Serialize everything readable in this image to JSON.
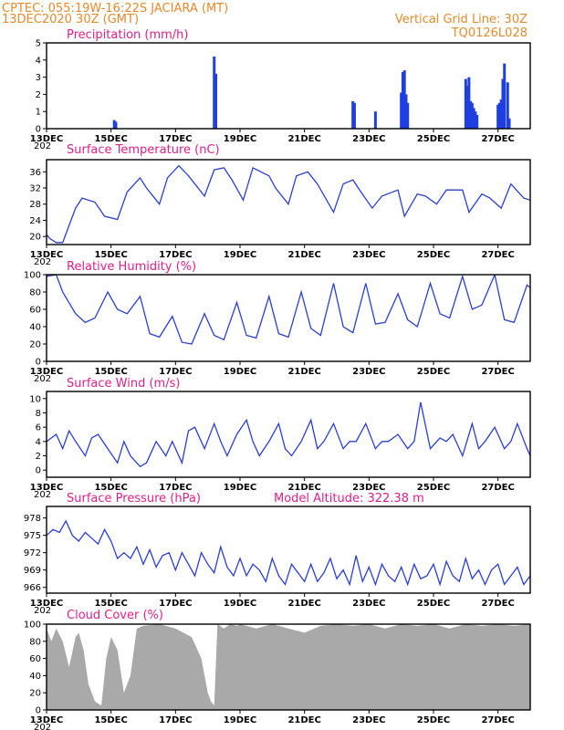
{
  "header": {
    "line1": "CPTEC:   055:19W-16:22S   JACIARA (MT)",
    "line2": "13DEC2020 30Z (GMT)",
    "right1": "Vertical Grid Line: 30Z",
    "right2": "TQ0126L028"
  },
  "x_axis": {
    "days_range": [
      0,
      15
    ],
    "tick_days": [
      0,
      2,
      4,
      6,
      8,
      10,
      12,
      14
    ],
    "tick_labels": [
      "13DEC",
      "15DEC",
      "17DEC",
      "19DEC",
      "21DEC",
      "23DEC",
      "25DEC",
      "27DEC"
    ],
    "first_label_suffix": "202"
  },
  "colors": {
    "line": "#2a3fd6",
    "bar": "#1f3fe0",
    "cloud": "#a9a9a9",
    "header": "#e8892c",
    "title": "#e0208a"
  },
  "chart_data": [
    {
      "type": "bar",
      "title": "Precipitation (mm/h)",
      "ylim": [
        0,
        5
      ],
      "yticks": [
        0,
        1,
        2,
        3,
        4,
        5
      ],
      "x": [
        2.1,
        2.15,
        5.2,
        5.25,
        9.5,
        9.55,
        10.2,
        11.0,
        11.05,
        11.1,
        11.15,
        11.2,
        13.0,
        13.05,
        13.1,
        13.15,
        13.2,
        13.25,
        13.3,
        13.35,
        14.0,
        14.05,
        14.1,
        14.15,
        14.2,
        14.3,
        14.35
      ],
      "values": [
        0.5,
        0.4,
        4.2,
        3.2,
        1.6,
        1.5,
        1.0,
        2.1,
        3.3,
        3.4,
        2.0,
        1.5,
        2.9,
        2.5,
        3.0,
        1.6,
        1.5,
        1.2,
        1.0,
        0.8,
        1.4,
        1.5,
        1.7,
        2.9,
        3.8,
        2.7,
        0.6
      ]
    },
    {
      "type": "line",
      "title": "Surface Temperature (nC)",
      "ylim": [
        18,
        39
      ],
      "yticks": [
        20,
        24,
        28,
        32,
        36
      ],
      "x": [
        0,
        0.1,
        0.3,
        0.5,
        0.9,
        1.1,
        1.5,
        1.8,
        2.2,
        2.5,
        2.9,
        3.1,
        3.5,
        3.75,
        4.1,
        4.4,
        4.9,
        5.2,
        5.5,
        5.75,
        6.1,
        6.4,
        6.9,
        7.1,
        7.5,
        7.75,
        8.1,
        8.4,
        8.9,
        9.2,
        9.5,
        9.75,
        10.1,
        10.4,
        10.9,
        11.1,
        11.5,
        11.75,
        12.1,
        12.4,
        12.9,
        13.1,
        13.5,
        13.75,
        14.1,
        14.4,
        14.8,
        15
      ],
      "values": [
        20.5,
        19.5,
        18.5,
        18.5,
        27,
        29.5,
        28.5,
        25,
        24.2,
        31,
        34.5,
        32,
        28,
        34.5,
        37.5,
        35,
        30,
        36.5,
        37,
        34,
        29,
        37,
        35,
        32,
        28,
        35,
        36,
        33,
        26,
        33,
        34,
        31,
        27,
        30,
        31.5,
        25,
        30.5,
        30,
        28,
        31.5,
        31.5,
        26,
        30.5,
        29.5,
        27,
        33,
        29.5,
        29
      ]
    },
    {
      "type": "line",
      "title": "Relative Humidity (%)",
      "ylim": [
        0,
        100
      ],
      "yticks": [
        0,
        20,
        40,
        60,
        80,
        100
      ],
      "x": [
        0,
        0.3,
        0.5,
        0.9,
        1.2,
        1.5,
        1.9,
        2.2,
        2.5,
        2.9,
        3.2,
        3.5,
        3.9,
        4.2,
        4.5,
        4.9,
        5.2,
        5.5,
        5.9,
        6.2,
        6.5,
        6.9,
        7.2,
        7.5,
        7.9,
        8.2,
        8.5,
        8.9,
        9.2,
        9.5,
        9.9,
        10.2,
        10.5,
        10.9,
        11.2,
        11.5,
        11.9,
        12.2,
        12.5,
        12.9,
        13.2,
        13.5,
        13.9,
        14.2,
        14.5,
        14.9,
        15
      ],
      "values": [
        98,
        100,
        80,
        55,
        45,
        50,
        80,
        60,
        55,
        75,
        32,
        28,
        52,
        22,
        20,
        55,
        30,
        25,
        68,
        30,
        27,
        75,
        32,
        28,
        80,
        38,
        30,
        90,
        40,
        33,
        90,
        43,
        45,
        78,
        48,
        40,
        90,
        55,
        50,
        98,
        60,
        65,
        100,
        48,
        45,
        88,
        85
      ]
    },
    {
      "type": "line",
      "title": "Surface Wind (m/s)",
      "ylim": [
        -1,
        11
      ],
      "yticks": [
        0,
        2,
        4,
        6,
        8,
        10
      ],
      "x": [
        0,
        0.3,
        0.5,
        0.7,
        0.9,
        1.2,
        1.4,
        1.6,
        1.9,
        2.2,
        2.4,
        2.6,
        2.9,
        3.1,
        3.4,
        3.7,
        3.9,
        4.2,
        4.4,
        4.6,
        4.9,
        5.2,
        5.4,
        5.6,
        5.9,
        6.2,
        6.4,
        6.6,
        6.9,
        7.2,
        7.4,
        7.6,
        7.9,
        8.2,
        8.4,
        8.6,
        8.9,
        9.2,
        9.4,
        9.6,
        9.9,
        10.2,
        10.4,
        10.6,
        10.9,
        11.2,
        11.4,
        11.6,
        11.9,
        12.2,
        12.4,
        12.6,
        12.9,
        13.2,
        13.4,
        13.6,
        13.9,
        14.2,
        14.4,
        14.6,
        14.9,
        15
      ],
      "values": [
        4,
        5,
        3,
        5.5,
        4,
        2,
        4.5,
        5,
        3,
        1,
        4,
        2,
        0.5,
        1,
        4,
        2,
        4,
        1,
        5.5,
        6,
        3,
        6.5,
        4,
        2,
        5,
        7,
        4,
        2,
        4,
        6.5,
        3,
        2,
        4,
        7,
        3,
        4,
        6.5,
        3,
        4,
        4,
        6.5,
        3,
        4,
        4,
        5,
        3,
        4,
        9.5,
        3,
        4.5,
        4,
        5,
        2,
        6.5,
        3,
        4,
        6,
        3,
        4,
        6.5,
        3,
        2
      ]
    },
    {
      "type": "line",
      "title": "Surface Pressure (hPa)",
      "annotation": "Model Altitude: 322.38 m",
      "ylim": [
        965,
        980
      ],
      "yticks": [
        966,
        969,
        972,
        975,
        978
      ],
      "x": [
        0,
        0.2,
        0.4,
        0.6,
        0.8,
        1.0,
        1.2,
        1.4,
        1.6,
        1.8,
        2.0,
        2.2,
        2.4,
        2.6,
        2.8,
        3.0,
        3.2,
        3.4,
        3.6,
        3.8,
        4.0,
        4.2,
        4.4,
        4.6,
        4.8,
        5.0,
        5.2,
        5.4,
        5.6,
        5.8,
        6.0,
        6.2,
        6.4,
        6.6,
        6.8,
        7.0,
        7.2,
        7.4,
        7.6,
        7.8,
        8.0,
        8.2,
        8.4,
        8.6,
        8.8,
        9.0,
        9.2,
        9.4,
        9.6,
        9.8,
        10.0,
        10.2,
        10.4,
        10.6,
        10.8,
        11.0,
        11.2,
        11.4,
        11.6,
        11.8,
        12.0,
        12.2,
        12.4,
        12.6,
        12.8,
        13.0,
        13.2,
        13.4,
        13.6,
        13.8,
        14.0,
        14.2,
        14.4,
        14.6,
        14.8,
        15.0
      ],
      "values": [
        975,
        976,
        975.5,
        977.5,
        975,
        974,
        975.5,
        974.5,
        973.5,
        976,
        974,
        971,
        972,
        971,
        973,
        970,
        972.5,
        969.5,
        971.5,
        972,
        969,
        972,
        970,
        968,
        972,
        970,
        968.5,
        973,
        969.5,
        968,
        971,
        968,
        970,
        969,
        967,
        971,
        968,
        966.5,
        970,
        968.5,
        967,
        970,
        967,
        968.5,
        971,
        967.5,
        969,
        966.5,
        971.5,
        967,
        969.5,
        966.5,
        970,
        968,
        967,
        969.5,
        966.5,
        970,
        967.5,
        968,
        970,
        966.5,
        970.5,
        968,
        967,
        971,
        967.5,
        969,
        966.5,
        969,
        970,
        966.5,
        968,
        969.5,
        966.5,
        968
      ]
    },
    {
      "type": "area",
      "title": "Cloud Cover (%)",
      "ylim": [
        0,
        100
      ],
      "yticks": [
        0,
        20,
        40,
        60,
        80,
        100
      ],
      "x": [
        0,
        0.15,
        0.3,
        0.5,
        0.7,
        0.9,
        1.0,
        1.15,
        1.3,
        1.5,
        1.7,
        1.85,
        2.0,
        2.2,
        2.4,
        2.6,
        2.8,
        3.0,
        3.5,
        4.0,
        4.5,
        4.8,
        5.0,
        5.1,
        5.2,
        5.3,
        5.5,
        5.7,
        5.9,
        6.0,
        6.5,
        7.0,
        7.5,
        8.0,
        8.5,
        9.0,
        9.5,
        10.0,
        10.5,
        11.0,
        11.5,
        12.0,
        12.5,
        13.0,
        13.5,
        14.0,
        14.5,
        15.0
      ],
      "values": [
        95,
        80,
        95,
        80,
        50,
        85,
        90,
        70,
        30,
        10,
        5,
        60,
        85,
        70,
        20,
        40,
        95,
        98,
        100,
        95,
        85,
        60,
        20,
        10,
        5,
        100,
        95,
        100,
        98,
        100,
        95,
        100,
        95,
        90,
        98,
        100,
        98,
        100,
        95,
        100,
        98,
        100,
        95,
        100,
        98,
        100,
        98,
        100
      ]
    }
  ]
}
